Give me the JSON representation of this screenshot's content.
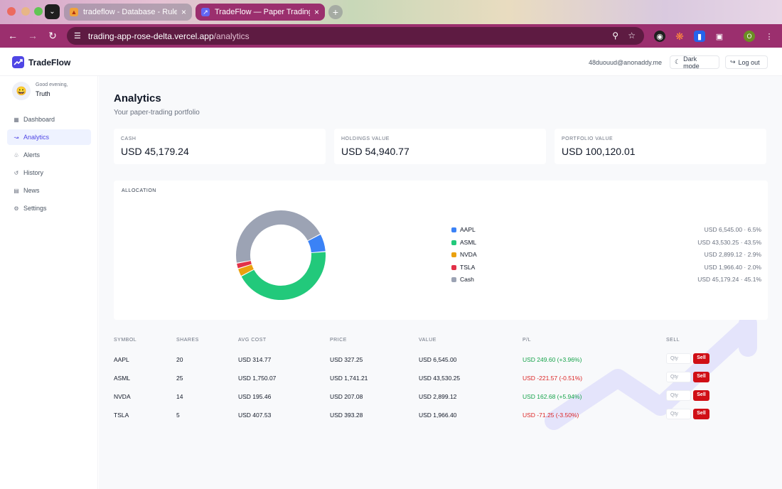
{
  "browser": {
    "tabs": [
      {
        "title": "tradeflow - Database - Rules",
        "close": "×"
      },
      {
        "title": "TradeFlow — Paper Trading",
        "close": "×"
      }
    ],
    "new_tab": "+",
    "url_host": "trading-app-rose-delta.vercel.app",
    "url_path": "/analytics",
    "profile_initial": "O"
  },
  "header": {
    "brand": "TradeFlow",
    "email": "48duouud@anonaddy.me",
    "dark_mode_label": "Dark mode",
    "logout_label": "Log out"
  },
  "sidebar": {
    "greeting": "Good evening,",
    "user_name": "Truth",
    "items": [
      {
        "label": "Dashboard",
        "icon": "dashboard-icon",
        "active": false
      },
      {
        "label": "Analytics",
        "icon": "chart-icon",
        "active": true
      },
      {
        "label": "Alerts",
        "icon": "bell-icon",
        "active": false
      },
      {
        "label": "History",
        "icon": "history-icon",
        "active": false
      },
      {
        "label": "News",
        "icon": "news-icon",
        "active": false
      },
      {
        "label": "Settings",
        "icon": "gear-icon",
        "active": false
      }
    ]
  },
  "page": {
    "title": "Analytics",
    "subtitle": "Your paper-trading portfolio"
  },
  "stats": {
    "cash_label": "CASH",
    "cash_value": "USD 45,179.24",
    "holdings_label": "HOLDINGS VALUE",
    "holdings_value": "USD 54,940.77",
    "portfolio_label": "PORTFOLIO VALUE",
    "portfolio_value": "USD 100,120.01"
  },
  "allocation": {
    "label": "ALLOCATION",
    "items": [
      {
        "name": "AAPL",
        "value": "USD 6,545.00 · 6.5%",
        "pct": 6.5,
        "color": "#3b82f6"
      },
      {
        "name": "ASML",
        "value": "USD 43,530.25 · 43.5%",
        "pct": 43.5,
        "color": "#22c97b"
      },
      {
        "name": "NVDA",
        "value": "USD 2,899.12 · 2.9%",
        "pct": 2.9,
        "color": "#eaa10f"
      },
      {
        "name": "TSLA",
        "value": "USD 1,966.40 · 2.0%",
        "pct": 2.0,
        "color": "#e23148"
      },
      {
        "name": "Cash",
        "value": "USD 45,179.24 · 45.1%",
        "pct": 45.1,
        "color": "#9ca3b4"
      }
    ]
  },
  "holdings": {
    "columns": [
      "SYMBOL",
      "SHARES",
      "AVG COST",
      "PRICE",
      "VALUE",
      "P/L",
      "SELL"
    ],
    "qty_placeholder": "Qty",
    "sell_label": "Sell",
    "rows": [
      {
        "symbol": "AAPL",
        "shares": "20",
        "avg_cost": "USD 314.77",
        "price": "USD 327.25",
        "value": "USD 6,545.00",
        "pl": "USD 249.60 (+3.96%)",
        "pl_positive": true
      },
      {
        "symbol": "ASML",
        "shares": "25",
        "avg_cost": "USD 1,750.07",
        "price": "USD 1,741.21",
        "value": "USD 43,530.25",
        "pl": "USD -221.57 (-0.51%)",
        "pl_positive": false
      },
      {
        "symbol": "NVDA",
        "shares": "14",
        "avg_cost": "USD 195.46",
        "price": "USD 207.08",
        "value": "USD 2,899.12",
        "pl": "USD 162.68 (+5.94%)",
        "pl_positive": true
      },
      {
        "symbol": "TSLA",
        "shares": "5",
        "avg_cost": "USD 407.53",
        "price": "USD 393.28",
        "value": "USD 1,966.40",
        "pl": "USD -71.25 (-3.50%)",
        "pl_positive": false
      }
    ]
  }
}
